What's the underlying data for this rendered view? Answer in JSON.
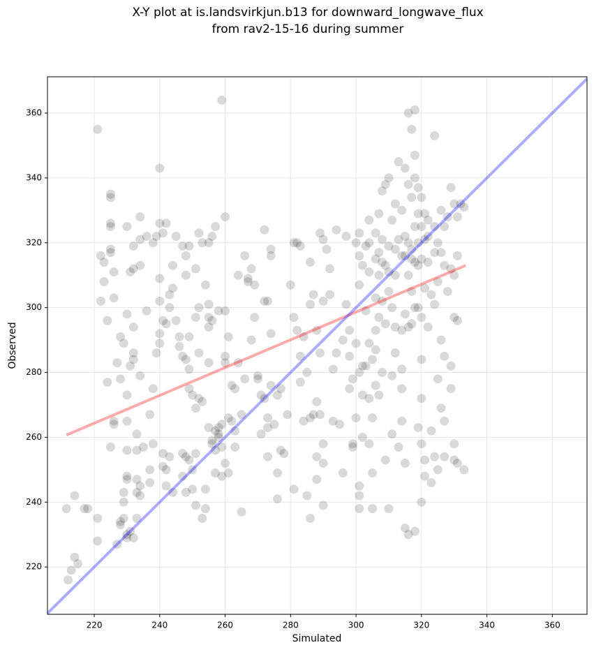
{
  "chart_data": {
    "type": "scatter",
    "title": "X-Y plot at is.landsvirkjun.b13 for downward_longwave_flux",
    "subtitle": "from rav2-15-16 during summer",
    "x_label": "Simulated",
    "y_label": "Observed",
    "xlim": [
      205.7,
      370.6
    ],
    "ylim": [
      205.4,
      371.2
    ],
    "xticks": [
      220,
      240,
      260,
      280,
      300,
      320,
      340,
      360
    ],
    "yticks": [
      220,
      240,
      260,
      280,
      300,
      320,
      340,
      360
    ],
    "grid": true,
    "color": "#000000",
    "x": [
      211.5,
      212,
      213,
      214,
      214,
      215,
      217,
      218,
      221,
      221,
      221,
      222,
      222,
      223,
      223,
      224,
      224,
      225,
      225,
      225,
      225,
      225,
      225,
      226,
      226,
      226,
      225,
      226,
      227,
      227,
      228,
      228,
      228,
      228,
      229,
      229,
      229,
      229,
      230,
      230,
      230,
      230,
      230,
      230,
      230,
      230,
      230,
      231,
      231,
      231,
      232,
      232,
      232,
      232,
      232,
      233,
      233,
      233,
      233,
      232,
      233,
      234,
      234,
      234,
      234,
      234,
      234,
      235,
      236,
      236,
      237,
      237,
      237,
      238,
      238,
      238,
      239,
      239,
      240,
      240,
      240,
      240,
      240,
      240,
      241,
      241,
      241,
      241,
      242,
      242,
      242,
      242,
      243,
      243,
      243,
      244,
      244,
      244,
      245,
      245,
      246,
      246,
      247,
      247,
      247,
      247,
      248,
      248,
      248,
      248,
      248,
      249,
      249,
      249,
      249,
      249,
      250,
      250,
      250,
      251,
      251,
      251,
      251,
      251,
      252,
      252,
      252,
      252,
      253,
      253,
      253,
      254,
      254,
      254,
      255,
      255,
      255,
      255,
      255,
      255,
      256,
      256,
      256,
      256,
      257,
      257,
      257,
      257,
      258,
      258,
      258,
      258,
      259,
      259,
      259,
      259,
      260,
      260,
      260,
      260,
      260,
      261,
      261,
      261,
      262,
      262,
      263,
      263,
      263,
      264,
      264,
      265,
      265,
      266,
      266,
      267,
      267,
      268,
      268,
      269,
      269,
      270,
      270,
      271,
      271,
      272,
      272,
      272,
      273,
      273,
      273,
      273,
      274,
      274,
      274,
      274,
      275,
      276,
      276,
      276,
      277,
      277,
      278,
      279,
      280,
      281,
      281,
      281,
      282,
      282,
      283,
      283,
      283,
      284,
      284,
      285,
      285,
      286,
      286,
      286,
      286,
      287,
      287,
      288,
      288,
      288,
      288,
      289,
      289,
      289,
      290,
      290,
      290,
      290,
      290,
      291,
      292,
      292,
      293,
      293,
      294,
      294,
      295,
      296,
      296,
      297,
      297,
      298,
      298,
      298,
      299,
      299,
      299,
      300,
      300,
      300,
      301,
      301,
      301,
      301,
      301,
      301,
      301,
      302,
      302,
      302,
      302,
      303,
      303,
      303,
      304,
      304,
      304,
      304,
      304,
      304,
      305,
      305,
      305,
      305,
      306,
      306,
      306,
      306,
      306,
      306,
      307,
      307,
      307,
      307,
      307,
      308,
      308,
      308,
      308,
      308,
      309,
      309,
      309,
      309,
      310,
      310,
      310,
      310,
      310,
      311,
      311,
      311,
      311,
      312,
      312,
      312,
      312,
      312,
      313,
      313,
      313,
      314,
      314,
      314,
      314,
      314,
      314,
      315,
      315,
      315,
      315,
      315,
      315,
      316,
      316,
      316,
      316,
      316,
      316,
      317,
      317,
      317,
      317,
      317,
      317,
      318,
      318,
      318,
      318,
      318,
      318,
      318,
      319,
      319,
      319,
      319,
      319,
      319,
      320,
      320,
      320,
      320,
      320,
      320,
      320,
      320,
      321,
      321,
      321,
      321,
      321,
      322,
      322,
      322,
      322,
      323,
      323,
      323,
      324,
      324,
      324,
      324,
      324,
      325,
      325,
      325,
      325,
      326,
      326,
      326,
      326,
      327,
      327,
      327,
      327,
      327,
      328,
      328,
      329,
      329,
      329,
      329,
      330,
      330,
      330,
      330,
      330,
      331,
      331,
      331,
      331,
      332,
      333,
      333
    ],
    "values": [
      238,
      216,
      219,
      242,
      223,
      221,
      238,
      238,
      228,
      235,
      355,
      302,
      316,
      308,
      314,
      296,
      277,
      326,
      325,
      317,
      318,
      334,
      335,
      311,
      265,
      264,
      257,
      303,
      283,
      227,
      233,
      234,
      291,
      278,
      289,
      243,
      240,
      235,
      230,
      229,
      248,
      247,
      256,
      298,
      325,
      265,
      273,
      311,
      282,
      231,
      286,
      284,
      294,
      312,
      319,
      261,
      256,
      247,
      243,
      229,
      235,
      328,
      321,
      313,
      279,
      245,
      242,
      257,
      299,
      322,
      250,
      246,
      267,
      320,
      275,
      258,
      286,
      322,
      326,
      309,
      302,
      292,
      289,
      343,
      323,
      296,
      255,
      251,
      295,
      250,
      245,
      326,
      304,
      300,
      254,
      306,
      313,
      243,
      322,
      296,
      291,
      288,
      319,
      285,
      255,
      248,
      316,
      310,
      284,
      254,
      243,
      319,
      291,
      281,
      275,
      253,
      273,
      250,
      244,
      312,
      297,
      269,
      255,
      239,
      323,
      300,
      286,
      272,
      320,
      271,
      235,
      307,
      244,
      238,
      320,
      301,
      297,
      294,
      283,
      263,
      322,
      296,
      259,
      258,
      325,
      262,
      256,
      249,
      299,
      261,
      260,
      263,
      364,
      257,
      248,
      264,
      328,
      299,
      285,
      283,
      252,
      291,
      266,
      249,
      276,
      265,
      275,
      262,
      257,
      283,
      310,
      237,
      267,
      316,
      278,
      309,
      308,
      312,
      290,
      307,
      297,
      278,
      279,
      273,
      261,
      324,
      302,
      272,
      302,
      266,
      263,
      254,
      318,
      316,
      292,
      276,
      264,
      273,
      249,
      241,
      256,
      275,
      255,
      267,
      307,
      320,
      297,
      244,
      320,
      293,
      319,
      285,
      277,
      291,
      265,
      242,
      280,
      314,
      301,
      266,
      235,
      304,
      267,
      293,
      271,
      254,
      247,
      323,
      286,
      267,
      321,
      302,
      258,
      252,
      239,
      318,
      312,
      304,
      281,
      265,
      324,
      286,
      264,
      290,
      249,
      322,
      301,
      293,
      285,
      275,
      278,
      258,
      257,
      320,
      289,
      266,
      323,
      316,
      307,
      280,
      245,
      242,
      238,
      313,
      282,
      273,
      260,
      319,
      299,
      282,
      327,
      320,
      311,
      289,
      272,
      258,
      284,
      266,
      249,
      238,
      323,
      315,
      303,
      293,
      276,
      287,
      329,
      317,
      310,
      297,
      273,
      336,
      321,
      314,
      302,
      280,
      338,
      313,
      295,
      253,
      340,
      319,
      311,
      305,
      238,
      327,
      300,
      279,
      261,
      332,
      318,
      310,
      294,
      286,
      345,
      321,
      257,
      330,
      316,
      293,
      281,
      275,
      265,
      343,
      322,
      316,
      298,
      252,
      232,
      360,
      338,
      320,
      310,
      294,
      230,
      355,
      334,
      318,
      315,
      305,
      295,
      361,
      347,
      340,
      325,
      314,
      300,
      231,
      337,
      329,
      320,
      313,
      300,
      263,
      334,
      325,
      315,
      297,
      284,
      272,
      258,
      240,
      329,
      321,
      306,
      253,
      248,
      327,
      322,
      314,
      294,
      304,
      262,
      246,
      353,
      325,
      317,
      301,
      254,
      320,
      308,
      278,
      250,
      330,
      317,
      290,
      269,
      325,
      313,
      285,
      265,
      254,
      328,
      305,
      337,
      312,
      282,
      275,
      332,
      310,
      297,
      258,
      253,
      328,
      316,
      296,
      252,
      332,
      331,
      250
    ],
    "lines": [
      {
        "color": "#ff0000",
        "x": [
          211.5,
          333.5
        ],
        "values": [
          260.7,
          313
        ]
      },
      {
        "color": "#0000ff",
        "x": [
          205.7,
          370.6
        ],
        "values": [
          205.7,
          370.6
        ]
      }
    ]
  }
}
